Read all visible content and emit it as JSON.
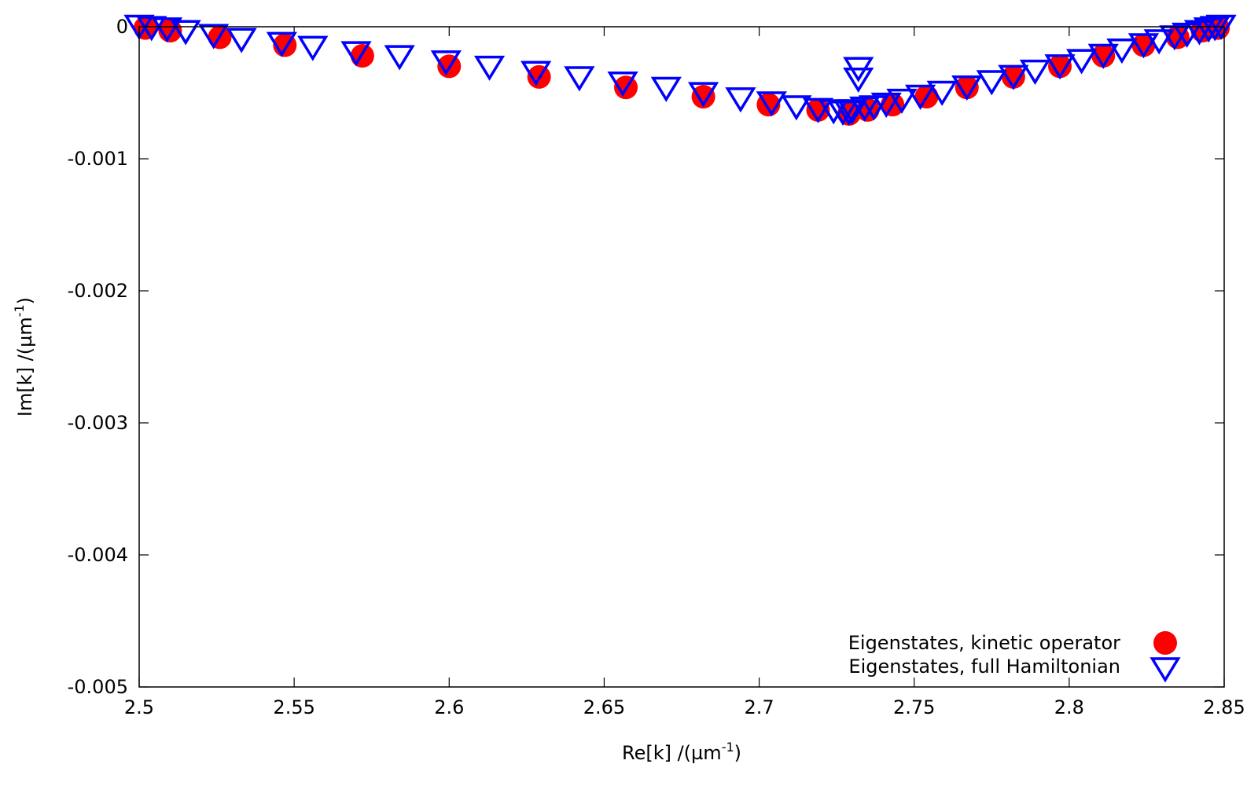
{
  "chart_data": {
    "type": "scatter",
    "xlabel": "Re[k] /(µm",
    "xlabel_sup": "-1",
    "xlabel_end": ")",
    "ylabel": "Im[k] /(µm",
    "ylabel_sup": "-1",
    "ylabel_end": ")",
    "xlim": [
      2.5,
      2.85
    ],
    "ylim": [
      -0.005,
      0
    ],
    "x_ticks": [
      2.5,
      2.55,
      2.6,
      2.65,
      2.7,
      2.75,
      2.8,
      2.85
    ],
    "x_tick_labels": [
      "2.5",
      "2.55",
      "2.6",
      "2.65",
      "2.7",
      "2.75",
      "2.8",
      "2.85"
    ],
    "y_ticks": [
      0,
      -0.001,
      -0.002,
      -0.003,
      -0.004,
      -0.005
    ],
    "y_tick_labels": [
      "0",
      "-0.001",
      "-0.002",
      "-0.003",
      "-0.004",
      "-0.005"
    ],
    "grid": false,
    "legend_position": "bottom-right",
    "series": [
      {
        "name": "Eigenstates, kinetic operator",
        "marker": "filled-circle",
        "color": "#ff0000",
        "points": [
          [
            2.502,
            -1e-05
          ],
          [
            2.51,
            -3e-05
          ],
          [
            2.526,
            -8e-05
          ],
          [
            2.547,
            -0.00014
          ],
          [
            2.572,
            -0.00022
          ],
          [
            2.6,
            -0.0003
          ],
          [
            2.629,
            -0.00038
          ],
          [
            2.657,
            -0.00046
          ],
          [
            2.682,
            -0.00053
          ],
          [
            2.703,
            -0.00059
          ],
          [
            2.719,
            -0.00063
          ],
          [
            2.729,
            -0.00066
          ],
          [
            2.735,
            -0.00063
          ],
          [
            2.743,
            -0.00059
          ],
          [
            2.754,
            -0.00053
          ],
          [
            2.767,
            -0.00046
          ],
          [
            2.782,
            -0.00038
          ],
          [
            2.797,
            -0.0003
          ],
          [
            2.811,
            -0.00022
          ],
          [
            2.824,
            -0.00014
          ],
          [
            2.835,
            -8e-05
          ],
          [
            2.843,
            -3e-05
          ],
          [
            2.848,
            -1e-05
          ]
        ]
      },
      {
        "name": "Eigenstates, full Hamiltonian",
        "marker": "open-triangle-down",
        "color": "#0000ff",
        "points": [
          [
            2.5,
            0.0
          ],
          [
            2.504,
            -1e-05
          ],
          [
            2.509,
            -2e-05
          ],
          [
            2.515,
            -4e-05
          ],
          [
            2.524,
            -7e-05
          ],
          [
            2.533,
            -0.0001
          ],
          [
            2.546,
            -0.00013
          ],
          [
            2.556,
            -0.00016
          ],
          [
            2.57,
            -0.0002
          ],
          [
            2.584,
            -0.00023
          ],
          [
            2.599,
            -0.00027
          ],
          [
            2.613,
            -0.00031
          ],
          [
            2.628,
            -0.00035
          ],
          [
            2.642,
            -0.00039
          ],
          [
            2.656,
            -0.00043
          ],
          [
            2.67,
            -0.00047
          ],
          [
            2.682,
            -0.00051
          ],
          [
            2.694,
            -0.00055
          ],
          [
            2.704,
            -0.00058
          ],
          [
            2.712,
            -0.00061
          ],
          [
            2.719,
            -0.00063
          ],
          [
            2.724,
            -0.00064
          ],
          [
            2.727,
            -0.00065
          ],
          [
            2.729,
            -0.00065
          ],
          [
            2.73,
            -0.00064
          ],
          [
            2.732,
            -0.00032
          ],
          [
            2.732,
            -0.0004
          ],
          [
            2.734,
            -0.00062
          ],
          [
            2.737,
            -0.00061
          ],
          [
            2.741,
            -0.00059
          ],
          [
            2.746,
            -0.00056
          ],
          [
            2.752,
            -0.00053
          ],
          [
            2.759,
            -0.0005
          ],
          [
            2.767,
            -0.00046
          ],
          [
            2.775,
            -0.00042
          ],
          [
            2.782,
            -0.00038
          ],
          [
            2.789,
            -0.00034
          ],
          [
            2.797,
            -0.0003
          ],
          [
            2.804,
            -0.00026
          ],
          [
            2.811,
            -0.00022
          ],
          [
            2.817,
            -0.00018
          ],
          [
            2.824,
            -0.00014
          ],
          [
            2.829,
            -0.00011
          ],
          [
            2.834,
            -8e-05
          ],
          [
            2.838,
            -6e-05
          ],
          [
            2.842,
            -4e-05
          ],
          [
            2.845,
            -2e-05
          ],
          [
            2.847,
            -1e-05
          ],
          [
            2.849,
            0.0
          ]
        ]
      }
    ]
  }
}
